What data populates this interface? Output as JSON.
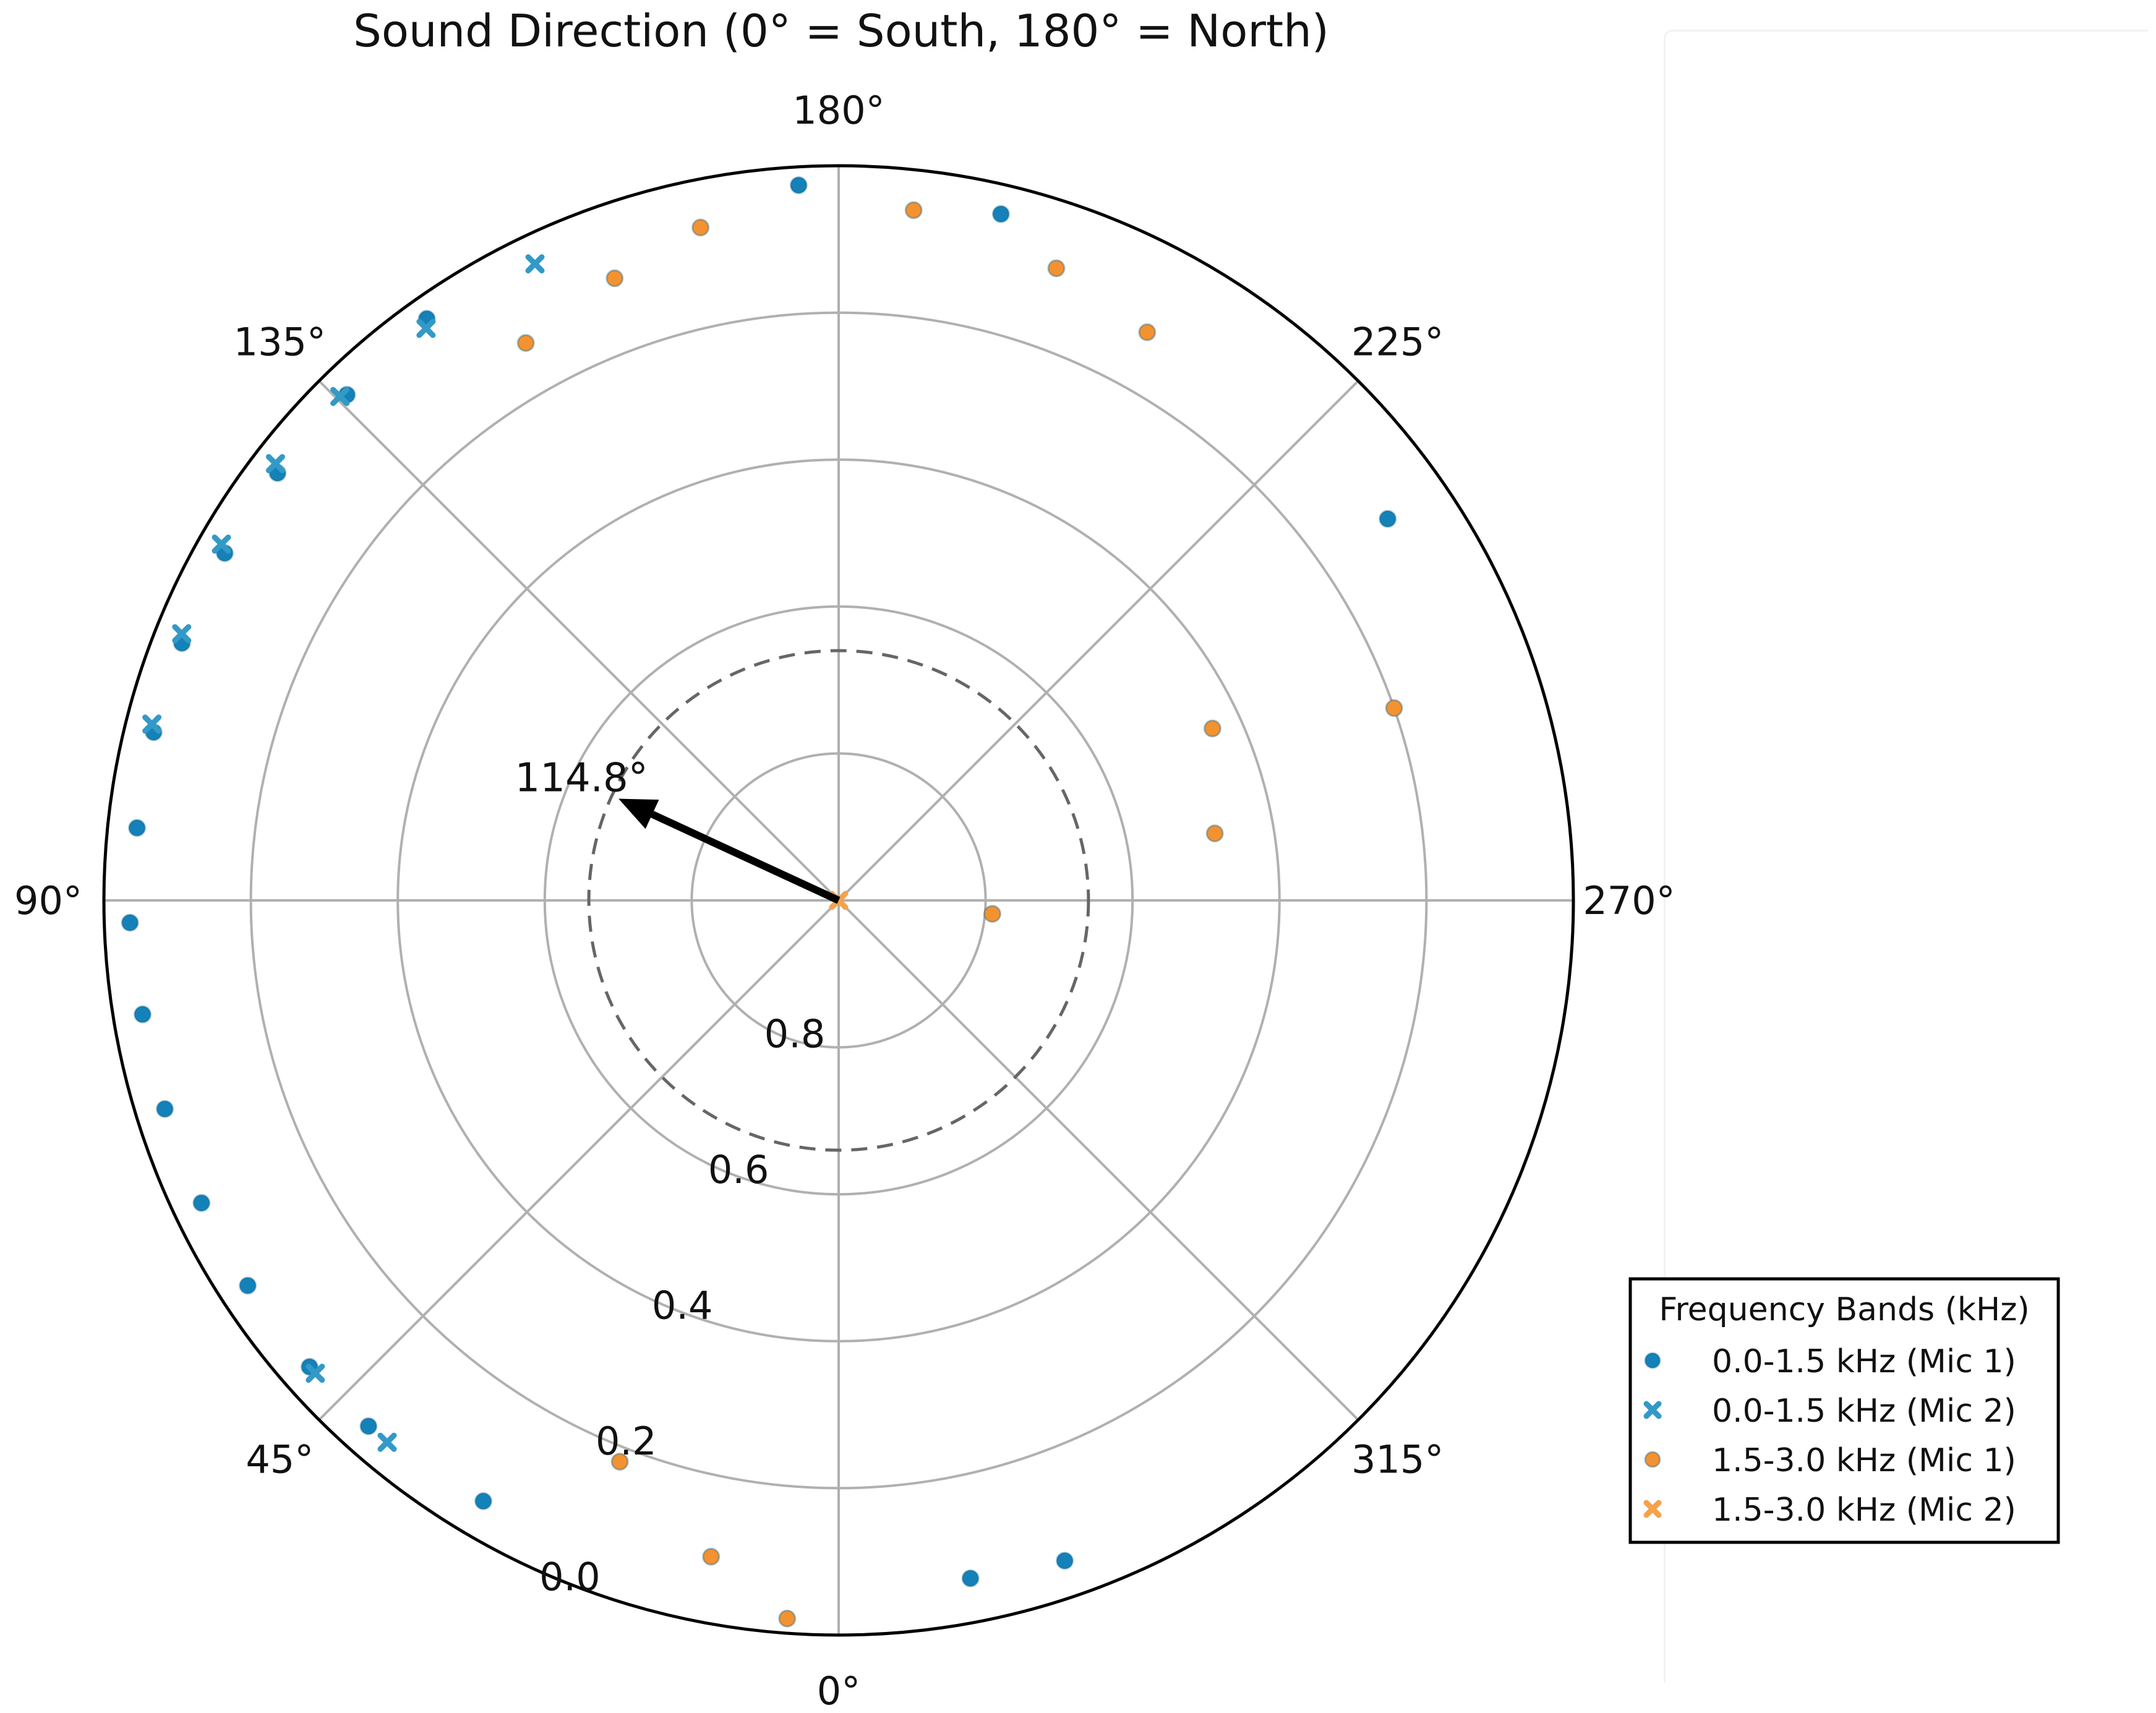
{
  "chart_data": {
    "type": "scatter",
    "projection": "polar",
    "title": "Sound Direction (0° = South, 180° = North)",
    "theta_zero_location": "bottom",
    "theta_direction": "clockwise",
    "theta_ticks": [
      "0°",
      "45°",
      "90°",
      "135°",
      "180°",
      "225°",
      "270°",
      "315°"
    ],
    "r_ticks": [
      "0.0",
      "0.2",
      "0.4",
      "0.6",
      "0.8"
    ],
    "r_tick_values": [
      0.0,
      0.2,
      0.4,
      0.6,
      0.8
    ],
    "r_range": [
      1.0,
      0.0
    ],
    "grid": true,
    "reference_circle": {
      "r": 0.66,
      "style": "dashed"
    },
    "arrow": {
      "theta": 114.8,
      "r_tip": 0.67,
      "label": "114.8°"
    },
    "legend": {
      "title": "Frequency Bands (kHz)",
      "placement": "right"
    },
    "colors": {
      "band_low": "#1482b8",
      "band_low_mic2": "#3399c7",
      "band_high": "#f39231",
      "band_high_mic2": "#f5a24a",
      "grid": "#b0b0b0",
      "arrow": "#000000"
    },
    "series": [
      {
        "name": "0.0-1.5 kHz (Mic 1)",
        "marker": "circle",
        "color_key": "band_low",
        "points": [
          {
            "theta": 176.8,
            "r": 0.025
          },
          {
            "theta": 193.3,
            "r": 0.04
          },
          {
            "theta": 235.2,
            "r": 0.09
          },
          {
            "theta": 144.7,
            "r": 0.03
          },
          {
            "theta": 135.8,
            "r": 0.04
          },
          {
            "theta": 127.3,
            "r": 0.04
          },
          {
            "theta": 119.5,
            "r": 0.04
          },
          {
            "theta": 111.4,
            "r": 0.04
          },
          {
            "theta": 103.8,
            "r": 0.04
          },
          {
            "theta": 95.9,
            "r": 0.04
          },
          {
            "theta": 88.2,
            "r": 0.035
          },
          {
            "theta": 80.7,
            "r": 0.04
          },
          {
            "theta": 72.8,
            "r": 0.04
          },
          {
            "theta": 64.6,
            "r": 0.04
          },
          {
            "theta": 56.9,
            "r": 0.04
          },
          {
            "theta": 48.6,
            "r": 0.04
          },
          {
            "theta": 41.8,
            "r": 0.04
          },
          {
            "theta": 30.6,
            "r": 0.05
          },
          {
            "theta": 349.0,
            "r": 0.06
          },
          {
            "theta": 341.1,
            "r": 0.05
          }
        ]
      },
      {
        "name": "0.0-1.5 kHz (Mic 2)",
        "marker": "x",
        "color_key": "band_low_mic2",
        "points": [
          {
            "theta": 154.5,
            "r": 0.04
          },
          {
            "theta": 144.2,
            "r": 0.04
          },
          {
            "theta": 135.3,
            "r": 0.035
          },
          {
            "theta": 127.8,
            "r": 0.03
          },
          {
            "theta": 120.0,
            "r": 0.03
          },
          {
            "theta": 112.1,
            "r": 0.035
          },
          {
            "theta": 104.4,
            "r": 0.035
          },
          {
            "theta": 47.9,
            "r": 0.04
          },
          {
            "theta": 39.8,
            "r": 0.04
          }
        ]
      },
      {
        "name": "1.5-3.0 kHz (Mic 1)",
        "marker": "circle",
        "color_key": "band_high",
        "points": [
          {
            "theta": 186.2,
            "r": 0.055
          },
          {
            "theta": 199.0,
            "r": 0.09
          },
          {
            "theta": 208.5,
            "r": 0.12
          },
          {
            "theta": 168.4,
            "r": 0.065
          },
          {
            "theta": 160.2,
            "r": 0.1
          },
          {
            "theta": 150.7,
            "r": 0.13
          },
          {
            "theta": 250.9,
            "r": 0.2
          },
          {
            "theta": 245.3,
            "r": 0.44
          },
          {
            "theta": 259.9,
            "r": 0.48
          },
          {
            "theta": 275.0,
            "r": 0.79
          },
          {
            "theta": 11.0,
            "r": 0.09
          },
          {
            "theta": 21.3,
            "r": 0.18
          },
          {
            "theta": 4.1,
            "r": 0.02
          }
        ]
      },
      {
        "name": "1.5-3.0 kHz (Mic 2)",
        "marker": "x",
        "color_key": "band_high_mic2",
        "points": [
          {
            "theta": 0.0,
            "r": 1.0
          }
        ]
      }
    ]
  }
}
